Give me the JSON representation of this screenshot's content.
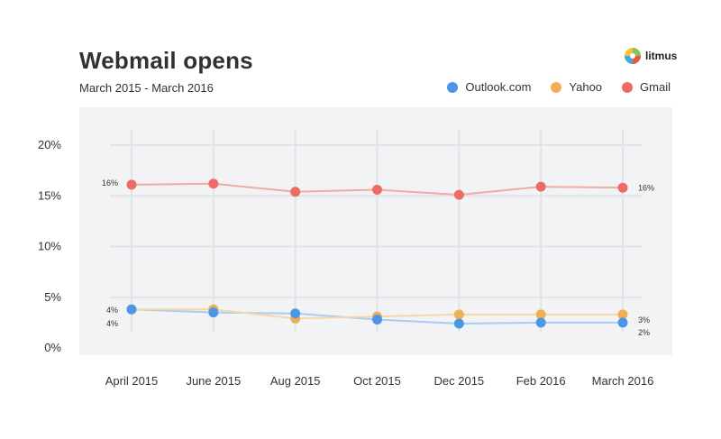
{
  "header": {
    "title": "Webmail opens",
    "subtitle": "March 2015 - March 2016",
    "brand": "litmus"
  },
  "colors": {
    "outlook": "#4a97e8",
    "yahoo": "#f2ae54",
    "gmail": "#ec6b64",
    "plot_bg": "#f2f3f5",
    "grid": "#e2e3e6"
  },
  "chart_data": {
    "type": "line",
    "title": "Webmail opens",
    "subtitle": "March 2015 - March 2016",
    "categories": [
      "April 2015",
      "June 2015",
      "Aug 2015",
      "Oct 2015",
      "Dec 2015",
      "Feb 2016",
      "March 2016"
    ],
    "series": [
      {
        "name": "Outlook.com",
        "color": "#4a97e8",
        "values": [
          3.8,
          3.5,
          3.4,
          2.8,
          2.4,
          2.5,
          2.5
        ]
      },
      {
        "name": "Yahoo",
        "color": "#f2ae54",
        "values": [
          3.8,
          3.8,
          2.9,
          3.1,
          3.3,
          3.3,
          3.3
        ]
      },
      {
        "name": "Gmail",
        "color": "#ec6b64",
        "values": [
          16.1,
          16.2,
          15.4,
          15.6,
          15.1,
          15.9,
          15.8
        ]
      }
    ],
    "yticks": [
      "0%",
      "5%",
      "10%",
      "15%",
      "20%"
    ],
    "ylim": [
      0,
      20
    ],
    "grid": true,
    "legend": "top-right",
    "annotations": {
      "start": {
        "gmail": "16%",
        "yahoo": "4%",
        "outlook": "4%"
      },
      "end": {
        "gmail": "16%",
        "yahoo": "3%",
        "outlook": "2%"
      }
    }
  }
}
